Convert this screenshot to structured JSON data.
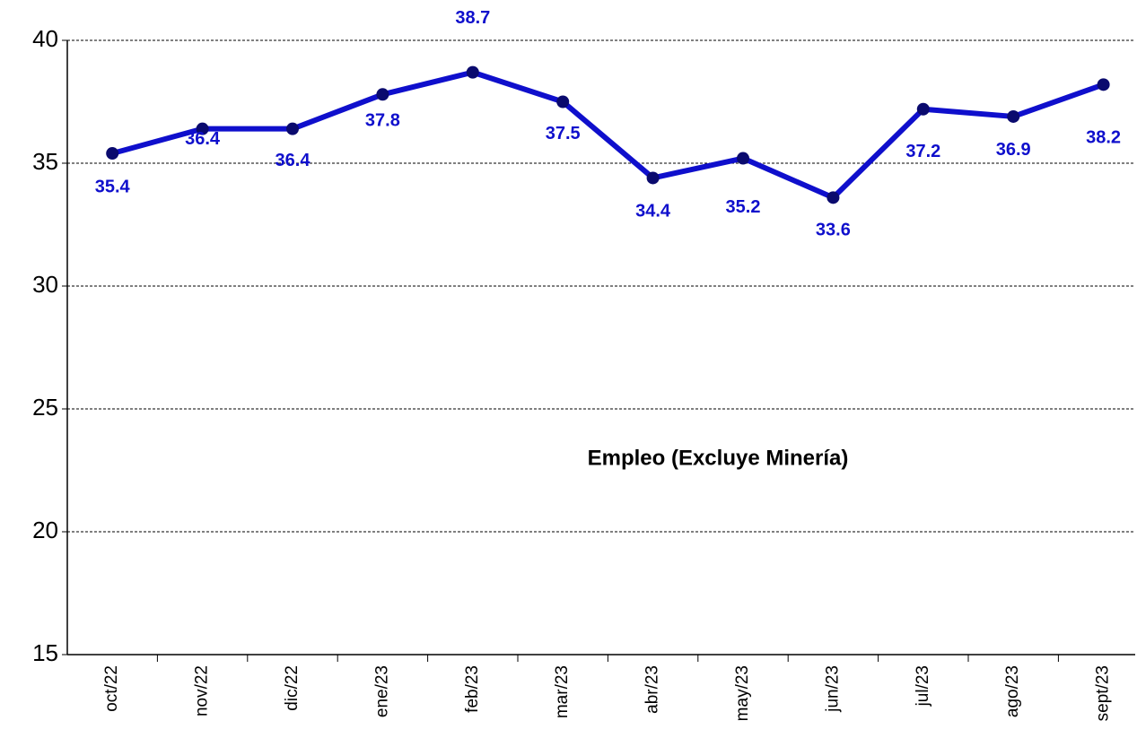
{
  "chart_data": {
    "type": "line",
    "annotation": "Empleo (Excluye Minería)",
    "categories": [
      "oct/22",
      "nov/22",
      "dic/22",
      "ene/23",
      "feb/23",
      "mar/23",
      "abr/23",
      "may/23",
      "jun/23",
      "jul/23",
      "ago/23",
      "sept/23"
    ],
    "values": [
      35.4,
      36.4,
      36.4,
      37.8,
      38.7,
      37.5,
      34.4,
      35.2,
      33.6,
      37.2,
      36.9,
      38.2
    ],
    "color": "#0f0fcc",
    "marker_color": "#0a0a6e",
    "ylim": [
      15,
      40
    ],
    "yticks": [
      15,
      20,
      25,
      30,
      35,
      40
    ],
    "grid": true
  }
}
